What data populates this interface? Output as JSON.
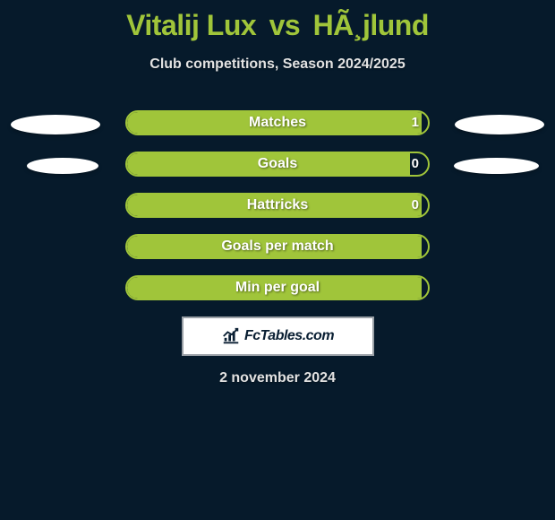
{
  "colors": {
    "background": "#061a2b",
    "accent": "#a0c53a",
    "white": "#ffffff",
    "text_light": "#e2e2e2",
    "dark_text": "#0a1f33",
    "brand_border": "#9aa0a6"
  },
  "title": {
    "player1": "Vitalij Lux",
    "vs": "vs",
    "player2": "HÃ¸jlund",
    "fontsize": 32,
    "color": "#a0c53a"
  },
  "subtitle": {
    "text": "Club competitions, Season 2024/2025",
    "fontsize": 16,
    "color": "#e2e2e2"
  },
  "stats": [
    {
      "label": "Matches",
      "value": "1",
      "fill_pct": 98,
      "show_left_ellipse": true,
      "show_right_ellipse": true
    },
    {
      "label": "Goals",
      "value": "0",
      "fill_pct": 94,
      "show_left_ellipse": true,
      "show_right_ellipse": true
    },
    {
      "label": "Hattricks",
      "value": "0",
      "fill_pct": 98,
      "show_left_ellipse": false,
      "show_right_ellipse": false
    },
    {
      "label": "Goals per match",
      "value": "",
      "fill_pct": 98,
      "show_left_ellipse": false,
      "show_right_ellipse": false
    },
    {
      "label": "Min per goal",
      "value": "",
      "fill_pct": 98,
      "show_left_ellipse": false,
      "show_right_ellipse": false
    }
  ],
  "bar_style": {
    "label_color": "#ffffff",
    "value_color": "#ffffff",
    "fill_color": "#a0c53a",
    "border_color": "#a0c53a",
    "ellipse_color": "#ffffff"
  },
  "brand": {
    "text": "FcTables.com",
    "icon": "chart",
    "text_color": "#0a1f33",
    "bg_color": "#ffffff",
    "border_color": "#9aa0a6"
  },
  "date": {
    "text": "2 november 2024",
    "color": "#e2e2e2"
  }
}
